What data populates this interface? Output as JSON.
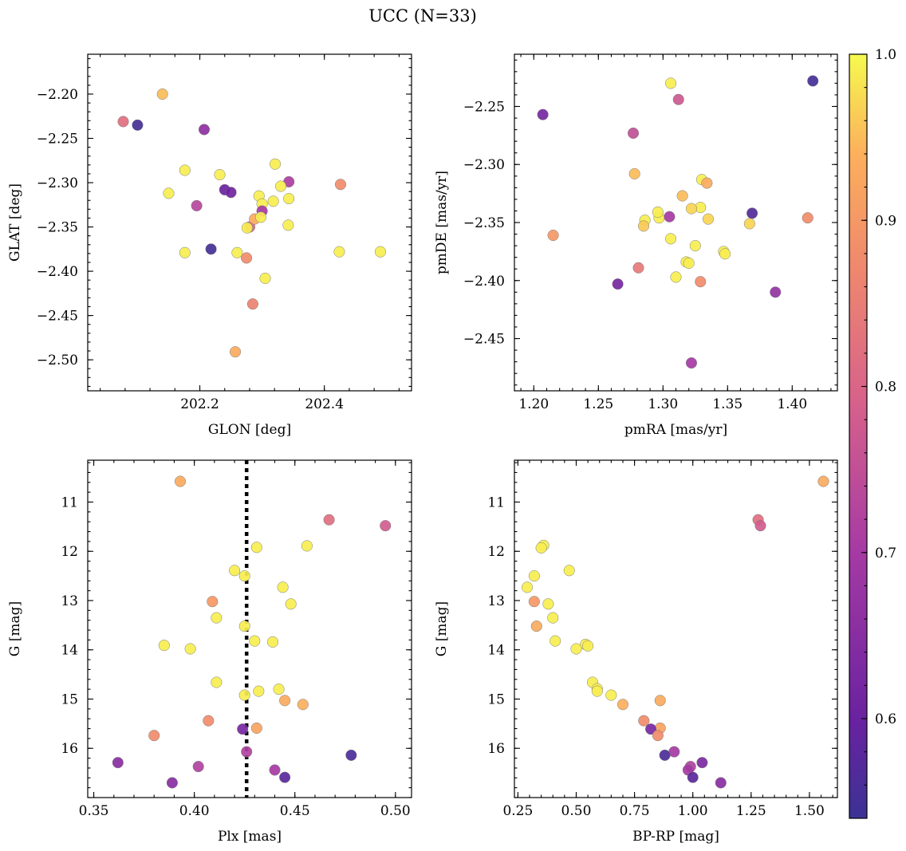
{
  "figure_title": "UCC (N=33)",
  "colorbar": {
    "min": 0.54,
    "max": 1.0,
    "ticks": [
      0.6,
      0.7,
      0.8,
      0.9,
      1.0
    ],
    "tick_labels": [
      "0.6",
      "0.7",
      "0.8",
      "0.9",
      "1.0"
    ],
    "colormap": "plasma"
  },
  "chart_data": [
    {
      "type": "scatter",
      "xlabel": "GLON [deg]",
      "ylabel": "GLAT [deg]",
      "xlim": [
        202.02,
        202.54
      ],
      "ylim": [
        -2.535,
        -2.155
      ],
      "xticks": [
        202.2,
        202.4
      ],
      "xtick_labels": [
        "202.2",
        "202.4"
      ],
      "yticks": [
        -2.2,
        -2.25,
        -2.3,
        -2.35,
        -2.4,
        -2.45,
        -2.5
      ],
      "ytick_labels": [
        "−2.20",
        "−2.25",
        "−2.30",
        "−2.35",
        "−2.40",
        "−2.45",
        "−2.50"
      ],
      "y_inverted": false,
      "grid": false,
      "x": [
        202.14,
        202.077,
        202.1,
        202.207,
        202.176,
        202.15,
        202.232,
        202.195,
        202.24,
        202.25,
        202.321,
        202.343,
        202.295,
        202.33,
        202.3,
        202.343,
        202.318,
        202.28,
        202.288,
        202.3,
        202.298,
        202.426,
        202.342,
        202.276,
        202.176,
        202.218,
        202.26,
        202.275,
        202.49,
        202.424,
        202.305,
        202.285,
        202.257
      ],
      "y": [
        -2.2,
        -2.231,
        -2.235,
        -2.24,
        -2.286,
        -2.312,
        -2.291,
        -2.326,
        -2.308,
        -2.311,
        -2.279,
        -2.299,
        -2.315,
        -2.304,
        -2.324,
        -2.318,
        -2.321,
        -2.35,
        -2.341,
        -2.332,
        -2.339,
        -2.302,
        -2.348,
        -2.351,
        -2.379,
        -2.375,
        -2.379,
        -2.385,
        -2.378,
        -2.378,
        -2.408,
        -2.437,
        -2.491
      ],
      "c": [
        0.95,
        0.82,
        0.55,
        0.66,
        0.99,
        0.99,
        0.99,
        0.73,
        0.6,
        0.61,
        0.99,
        0.71,
        0.99,
        0.99,
        0.99,
        0.99,
        0.99,
        0.8,
        0.93,
        0.7,
        0.99,
        0.88,
        0.99,
        0.99,
        0.99,
        0.55,
        0.99,
        0.88,
        0.99,
        0.99,
        0.99,
        0.86,
        0.93
      ]
    },
    {
      "type": "scatter",
      "xlabel": "pmRA [mas/yr]",
      "ylabel": "pmDE [mas/yr]",
      "xlim": [
        1.185,
        1.435
      ],
      "ylim": [
        -2.495,
        -2.205
      ],
      "xticks": [
        1.2,
        1.25,
        1.3,
        1.35,
        1.4
      ],
      "xtick_labels": [
        "1.20",
        "1.25",
        "1.30",
        "1.35",
        "1.40"
      ],
      "yticks": [
        -2.25,
        -2.3,
        -2.35,
        -2.4,
        -2.45
      ],
      "ytick_labels": [
        "−2.25",
        "−2.30",
        "−2.35",
        "−2.40",
        "−2.45"
      ],
      "y_inverted": false,
      "grid": false,
      "x": [
        1.306,
        1.416,
        1.312,
        1.207,
        1.277,
        1.278,
        1.33,
        1.334,
        1.315,
        1.329,
        1.322,
        1.286,
        1.285,
        1.297,
        1.296,
        1.335,
        1.305,
        1.369,
        1.412,
        1.367,
        1.215,
        1.306,
        1.325,
        1.347,
        1.348,
        1.318,
        1.32,
        1.31,
        1.281,
        1.329,
        1.265,
        1.387,
        1.322
      ],
      "y": [
        -2.23,
        -2.228,
        -2.244,
        -2.257,
        -2.273,
        -2.308,
        -2.313,
        -2.316,
        -2.327,
        -2.337,
        -2.338,
        -2.348,
        -2.353,
        -2.346,
        -2.341,
        -2.347,
        -2.345,
        -2.342,
        -2.346,
        -2.351,
        -2.361,
        -2.364,
        -2.37,
        -2.375,
        -2.377,
        -2.384,
        -2.385,
        -2.397,
        -2.389,
        -2.401,
        -2.403,
        -2.41,
        -2.471
      ],
      "c": [
        0.99,
        0.55,
        0.77,
        0.62,
        0.75,
        0.95,
        0.99,
        0.93,
        0.95,
        0.99,
        0.97,
        0.99,
        0.96,
        0.99,
        0.99,
        0.97,
        0.7,
        0.57,
        0.88,
        0.97,
        0.9,
        0.99,
        0.99,
        0.99,
        0.99,
        0.99,
        0.99,
        0.99,
        0.84,
        0.88,
        0.62,
        0.67,
        0.7
      ]
    },
    {
      "type": "scatter",
      "xlabel": "Plx [mas]",
      "ylabel": "G [mag]",
      "xlim": [
        0.347,
        0.508
      ],
      "ylim": [
        17.0,
        10.15
      ],
      "xticks": [
        0.35,
        0.4,
        0.45,
        0.5
      ],
      "xtick_labels": [
        "0.35",
        "0.40",
        "0.45",
        "0.50"
      ],
      "yticks": [
        11,
        12,
        13,
        14,
        15,
        16
      ],
      "ytick_labels": [
        "11",
        "12",
        "13",
        "14",
        "15",
        "16"
      ],
      "y_inverted": true,
      "grid": false,
      "vline": 0.426,
      "x": [
        0.393,
        0.467,
        0.495,
        0.431,
        0.456,
        0.42,
        0.425,
        0.444,
        0.409,
        0.448,
        0.411,
        0.425,
        0.43,
        0.439,
        0.385,
        0.398,
        0.411,
        0.432,
        0.425,
        0.442,
        0.445,
        0.454,
        0.407,
        0.431,
        0.424,
        0.38,
        0.426,
        0.478,
        0.362,
        0.402,
        0.44,
        0.445,
        0.389
      ],
      "y": [
        10.58,
        11.36,
        11.48,
        11.92,
        11.89,
        12.39,
        12.5,
        12.73,
        13.02,
        13.07,
        13.35,
        13.52,
        13.82,
        13.84,
        13.91,
        13.98,
        14.66,
        14.84,
        14.92,
        14.8,
        15.03,
        15.11,
        15.44,
        15.59,
        15.61,
        15.74,
        16.07,
        16.14,
        16.29,
        16.37,
        16.44,
        16.59,
        16.7
      ],
      "c": [
        0.93,
        0.82,
        0.78,
        0.99,
        0.99,
        0.99,
        0.99,
        0.99,
        0.9,
        0.99,
        0.99,
        0.99,
        0.99,
        0.99,
        0.99,
        0.99,
        0.99,
        0.99,
        0.99,
        0.99,
        0.93,
        0.94,
        0.88,
        0.92,
        0.62,
        0.88,
        0.72,
        0.56,
        0.65,
        0.72,
        0.7,
        0.58,
        0.65
      ]
    },
    {
      "type": "scatter",
      "xlabel": "BP-RP [mag]",
      "ylabel": "G [mag]",
      "xlim": [
        0.235,
        1.62
      ],
      "ylim": [
        17.0,
        10.15
      ],
      "xticks": [
        0.25,
        0.5,
        0.75,
        1.0,
        1.25,
        1.5
      ],
      "xtick_labels": [
        "0.25",
        "0.50",
        "0.75",
        "1.00",
        "1.25",
        "1.50"
      ],
      "yticks": [
        11,
        12,
        13,
        14,
        15,
        16
      ],
      "ytick_labels": [
        "11",
        "12",
        "13",
        "14",
        "15",
        "16"
      ],
      "y_inverted": true,
      "grid": false,
      "x": [
        1.56,
        1.28,
        1.29,
        0.36,
        0.35,
        0.47,
        0.32,
        0.29,
        0.32,
        0.38,
        0.4,
        0.33,
        0.41,
        0.54,
        0.55,
        0.5,
        0.57,
        0.59,
        0.65,
        0.59,
        0.86,
        0.7,
        0.79,
        0.86,
        0.82,
        0.85,
        0.92,
        1.04,
        0.88,
        0.99,
        0.98,
        1.0,
        1.12
      ],
      "y": [
        10.58,
        11.36,
        11.48,
        11.88,
        11.93,
        12.39,
        12.5,
        12.73,
        13.02,
        13.07,
        13.35,
        13.52,
        13.82,
        13.89,
        13.92,
        13.98,
        14.66,
        14.79,
        14.92,
        14.84,
        15.03,
        15.11,
        15.44,
        15.59,
        15.61,
        15.74,
        16.07,
        16.29,
        16.14,
        16.37,
        16.44,
        16.59,
        16.7
      ],
      "c": [
        0.93,
        0.82,
        0.78,
        0.99,
        0.99,
        0.99,
        0.99,
        0.99,
        0.9,
        0.99,
        0.99,
        0.93,
        0.99,
        0.99,
        0.99,
        0.99,
        0.99,
        0.99,
        0.99,
        0.99,
        0.93,
        0.94,
        0.88,
        0.92,
        0.62,
        0.88,
        0.7,
        0.63,
        0.56,
        0.72,
        0.7,
        0.58,
        0.65
      ]
    }
  ]
}
